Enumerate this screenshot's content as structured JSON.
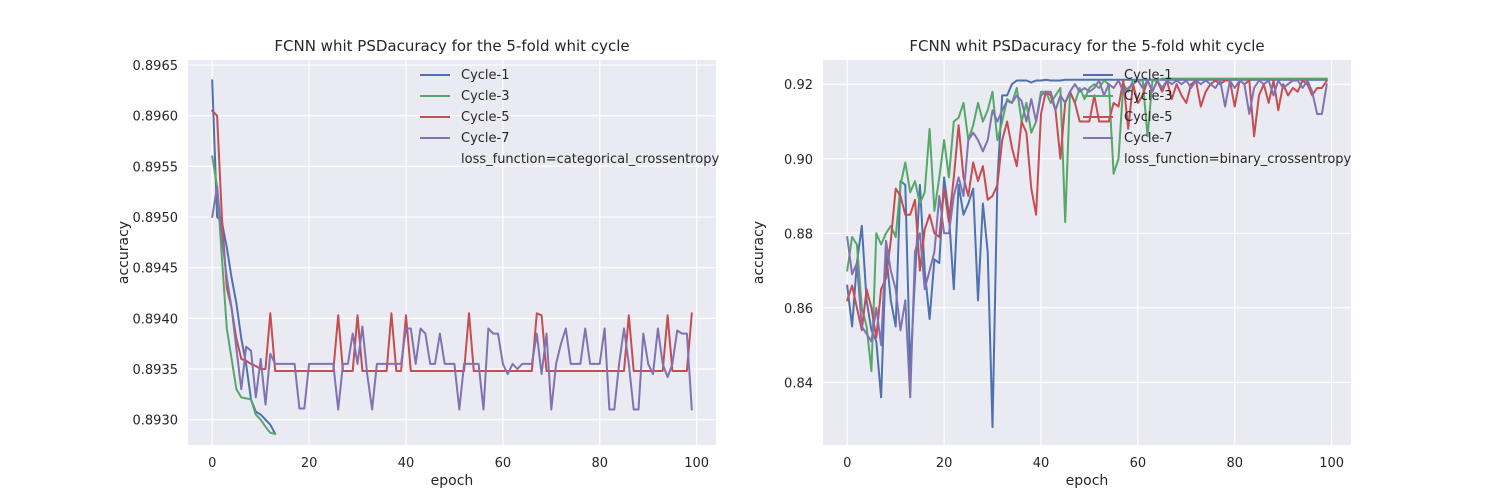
{
  "chart_data": [
    {
      "type": "line",
      "title": "FCNN whit PSDacuracy for the 5-fold whit cycle",
      "xlabel": "epoch",
      "ylabel": "accuracy",
      "xlim": [
        -5,
        104
      ],
      "ylim": [
        0.89275,
        0.89655
      ],
      "xticks": [
        0,
        20,
        40,
        60,
        80,
        100
      ],
      "yticks": [
        0.893,
        0.8935,
        0.894,
        0.8945,
        0.895,
        0.8955,
        0.896,
        0.8965
      ],
      "ytick_labels": [
        "0.8930",
        "0.8935",
        "0.8940",
        "0.8945",
        "0.8950",
        "0.8955",
        "0.8960",
        "0.8965"
      ],
      "grid": true,
      "legend_position": "top-right",
      "legend_note": "loss_function=categorical_crossentropy",
      "series": [
        {
          "name": "Cycle-1",
          "color": "#4c72b0",
          "values": [
            0.89635,
            0.895,
            0.89495,
            0.8947,
            0.8944,
            0.89415,
            0.8938,
            0.89355,
            0.8932,
            0.89308,
            0.89305,
            0.893,
            0.89295,
            0.89286
          ]
        },
        {
          "name": "Cycle-3",
          "color": "#55a868",
          "values": [
            0.8956,
            0.8953,
            0.8946,
            0.8939,
            0.8936,
            0.8933,
            0.89322,
            0.89321,
            0.8932,
            0.89305,
            0.893,
            0.89293,
            0.89287,
            0.89286
          ]
        },
        {
          "name": "Cycle-5",
          "color": "#c44e52",
          "values": [
            0.89605,
            0.896,
            0.895,
            0.8943,
            0.8941,
            0.8938,
            0.8936,
            0.89358,
            0.89355,
            0.89353,
            0.8935,
            0.8935,
            0.89405,
            0.89348,
            0.89348,
            0.89348,
            0.89348,
            0.89348,
            0.89348,
            0.89348,
            0.89348,
            0.89348,
            0.89348,
            0.89348,
            0.89348,
            0.89348,
            0.89403,
            0.89348,
            0.89348,
            0.89348,
            0.89403,
            0.89348,
            0.89348,
            0.89348,
            0.89348,
            0.89348,
            0.89348,
            0.89405,
            0.89348,
            0.89348,
            0.89403,
            0.89348,
            0.89348,
            0.89348,
            0.89348,
            0.89348,
            0.89348,
            0.89348,
            0.89348,
            0.89348,
            0.89348,
            0.89348,
            0.89348,
            0.89405,
            0.89348,
            0.89348,
            0.89348,
            0.89348,
            0.89348,
            0.89348,
            0.89348,
            0.89348,
            0.89348,
            0.89348,
            0.89348,
            0.89348,
            0.89348,
            0.89405,
            0.89403,
            0.89348,
            0.89348,
            0.89348,
            0.89348,
            0.89348,
            0.89348,
            0.89348,
            0.89348,
            0.89348,
            0.89348,
            0.89348,
            0.89348,
            0.89348,
            0.89348,
            0.89348,
            0.89348,
            0.89348,
            0.89403,
            0.89348,
            0.89348,
            0.89348,
            0.89348,
            0.89348,
            0.89348,
            0.89348,
            0.89403,
            0.89348,
            0.89348,
            0.89348,
            0.89348,
            0.89405
          ]
        },
        {
          "name": "Cycle-7",
          "color": "#8172b2",
          "values": [
            0.895,
            0.8953,
            0.8948,
            0.8944,
            0.8941,
            0.8937,
            0.8933,
            0.89372,
            0.89368,
            0.89322,
            0.8936,
            0.89315,
            0.89365,
            0.89355,
            0.89355,
            0.89355,
            0.89355,
            0.89355,
            0.89311,
            0.89311,
            0.89355,
            0.89355,
            0.89355,
            0.89355,
            0.89355,
            0.89355,
            0.8931,
            0.89355,
            0.89355,
            0.89385,
            0.89355,
            0.89392,
            0.89345,
            0.8931,
            0.89355,
            0.89355,
            0.89355,
            0.89355,
            0.89355,
            0.89355,
            0.8939,
            0.8939,
            0.89355,
            0.8939,
            0.89385,
            0.89355,
            0.89355,
            0.89385,
            0.89355,
            0.89355,
            0.89355,
            0.8931,
            0.89355,
            0.89355,
            0.89355,
            0.89355,
            0.8931,
            0.8939,
            0.89385,
            0.89385,
            0.89355,
            0.89345,
            0.89355,
            0.8935,
            0.89355,
            0.89355,
            0.89355,
            0.89385,
            0.89345,
            0.89385,
            0.8931,
            0.89355,
            0.89375,
            0.8939,
            0.89355,
            0.89355,
            0.89355,
            0.8939,
            0.89355,
            0.89355,
            0.89355,
            0.8939,
            0.8931,
            0.8931,
            0.89355,
            0.8939,
            0.89355,
            0.8931,
            0.8931,
            0.89385,
            0.89355,
            0.89345,
            0.8939,
            0.89355,
            0.89342,
            0.89355,
            0.89388,
            0.89385,
            0.89385,
            0.8931
          ]
        }
      ]
    },
    {
      "type": "line",
      "title": "FCNN whit PSDacuracy for the 5-fold whit cycle",
      "xlabel": "epoch",
      "ylabel": "accuracy",
      "xlim": [
        -5,
        104
      ],
      "ylim": [
        0.8232,
        0.9265
      ],
      "xticks": [
        0,
        20,
        40,
        60,
        80,
        100
      ],
      "yticks": [
        0.84,
        0.86,
        0.88,
        0.9,
        0.92
      ],
      "ytick_labels": [
        "0.84",
        "0.86",
        "0.88",
        "0.90",
        "0.92"
      ],
      "grid": true,
      "legend_position": "top-right",
      "legend_note": "loss_function=binary_crossentropy",
      "series": [
        {
          "name": "Cycle-1",
          "color": "#4c72b0",
          "values": [
            0.866,
            0.855,
            0.872,
            0.882,
            0.862,
            0.854,
            0.851,
            0.836,
            0.875,
            0.862,
            0.855,
            0.894,
            0.893,
            0.843,
            0.868,
            0.893,
            0.87,
            0.857,
            0.873,
            0.872,
            0.895,
            0.885,
            0.865,
            0.893,
            0.885,
            0.888,
            0.892,
            0.862,
            0.888,
            0.875,
            0.828,
            0.894,
            0.917,
            0.917,
            0.92,
            0.921,
            0.921,
            0.921,
            0.9205,
            0.921,
            0.921,
            0.9212,
            0.921,
            0.921,
            0.921,
            0.9212,
            0.9212,
            0.9212,
            0.9212,
            0.9212,
            0.9212,
            0.9212,
            0.9212,
            0.9212,
            0.9212,
            0.9212,
            0.9212,
            0.9212,
            0.9212,
            0.9212,
            0.9212,
            0.9212,
            0.9212,
            0.9212,
            0.9212,
            0.9212,
            0.9212,
            0.9212,
            0.9212,
            0.9212,
            0.9212,
            0.9212,
            0.9212,
            0.9212,
            0.9212,
            0.9212,
            0.9212,
            0.9212,
            0.9212,
            0.9212,
            0.9212,
            0.9212,
            0.9212,
            0.9212,
            0.9212,
            0.9212,
            0.9212,
            0.9212,
            0.9212,
            0.9212,
            0.9212,
            0.9212,
            0.9212,
            0.9212,
            0.9212,
            0.9212,
            0.9212,
            0.9212,
            0.9212,
            0.9212
          ]
        },
        {
          "name": "Cycle-3",
          "color": "#55a868",
          "values": [
            0.87,
            0.879,
            0.877,
            0.86,
            0.855,
            0.843,
            0.88,
            0.877,
            0.88,
            0.882,
            0.879,
            0.893,
            0.899,
            0.891,
            0.894,
            0.888,
            0.891,
            0.908,
            0.886,
            0.895,
            0.905,
            0.895,
            0.91,
            0.911,
            0.915,
            0.905,
            0.909,
            0.915,
            0.91,
            0.913,
            0.918,
            0.905,
            0.91,
            0.916,
            0.915,
            0.919,
            0.91,
            0.915,
            0.907,
            0.91,
            0.918,
            0.918,
            0.915,
            0.917,
            0.919,
            0.883,
            0.918,
            0.915,
            0.919,
            0.916,
            0.919,
            0.92,
            0.919,
            0.921,
            0.92,
            0.896,
            0.9,
            0.92,
            0.918,
            0.921,
            0.921,
            0.921,
            0.906,
            0.921,
            0.921,
            0.9215,
            0.9215,
            0.9215,
            0.9215,
            0.9215,
            0.9215,
            0.9215,
            0.9215,
            0.9215,
            0.9215,
            0.9215,
            0.9215,
            0.9215,
            0.9215,
            0.9215,
            0.9215,
            0.9215,
            0.9215,
            0.9215,
            0.9215,
            0.9215,
            0.9215,
            0.9215,
            0.9215,
            0.9215,
            0.9215,
            0.9215,
            0.9215,
            0.9215,
            0.9215,
            0.9215,
            0.9215,
            0.9215,
            0.9215,
            0.9215
          ]
        },
        {
          "name": "Cycle-5",
          "color": "#c44e52",
          "values": [
            0.862,
            0.866,
            0.86,
            0.854,
            0.865,
            0.86,
            0.852,
            0.865,
            0.868,
            0.878,
            0.892,
            0.89,
            0.885,
            0.885,
            0.889,
            0.87,
            0.881,
            0.885,
            0.88,
            0.879,
            0.892,
            0.883,
            0.895,
            0.909,
            0.895,
            0.89,
            0.899,
            0.894,
            0.898,
            0.889,
            0.89,
            0.893,
            0.905,
            0.91,
            0.903,
            0.898,
            0.91,
            0.907,
            0.892,
            0.885,
            0.912,
            0.918,
            0.917,
            0.913,
            0.9,
            0.915,
            0.918,
            0.915,
            0.91,
            0.91,
            0.91,
            0.917,
            0.91,
            0.91,
            0.91,
            0.915,
            0.914,
            0.921,
            0.908,
            0.92,
            0.915,
            0.917,
            0.921,
            0.918,
            0.921,
            0.918,
            0.921,
            0.916,
            0.92,
            0.917,
            0.915,
            0.92,
            0.921,
            0.914,
            0.918,
            0.92,
            0.921,
            0.92,
            0.921,
            0.921,
            0.914,
            0.921,
            0.92,
            0.921,
            0.906,
            0.917,
            0.92,
            0.915,
            0.921,
            0.913,
            0.92,
            0.917,
            0.919,
            0.918,
            0.921,
            0.92,
            0.917,
            0.919,
            0.919,
            0.921
          ]
        },
        {
          "name": "Cycle-7",
          "color": "#8172b2",
          "values": [
            0.879,
            0.869,
            0.872,
            0.855,
            0.853,
            0.851,
            0.86,
            0.85,
            0.878,
            0.87,
            0.865,
            0.854,
            0.862,
            0.836,
            0.875,
            0.88,
            0.865,
            0.87,
            0.875,
            0.89,
            0.88,
            0.88,
            0.89,
            0.895,
            0.89,
            0.905,
            0.907,
            0.905,
            0.902,
            0.905,
            0.913,
            0.91,
            0.913,
            0.9155,
            0.915,
            0.917,
            0.9155,
            0.91,
            0.916,
            0.91,
            0.917,
            0.918,
            0.918,
            0.913,
            0.917,
            0.915,
            0.918,
            0.92,
            0.918,
            0.919,
            0.918,
            0.919,
            0.921,
            0.917,
            0.92,
            0.919,
            0.921,
            0.918,
            0.919,
            0.92,
            0.921,
            0.919,
            0.921,
            0.918,
            0.921,
            0.919,
            0.921,
            0.92,
            0.921,
            0.92,
            0.921,
            0.919,
            0.921,
            0.92,
            0.921,
            0.92,
            0.919,
            0.921,
            0.914,
            0.921,
            0.919,
            0.921,
            0.92,
            0.912,
            0.919,
            0.921,
            0.92,
            0.921,
            0.917,
            0.921,
            0.919,
            0.92,
            0.921,
            0.921,
            0.919,
            0.921,
            0.918,
            0.912,
            0.912,
            0.92
          ]
        }
      ]
    }
  ]
}
